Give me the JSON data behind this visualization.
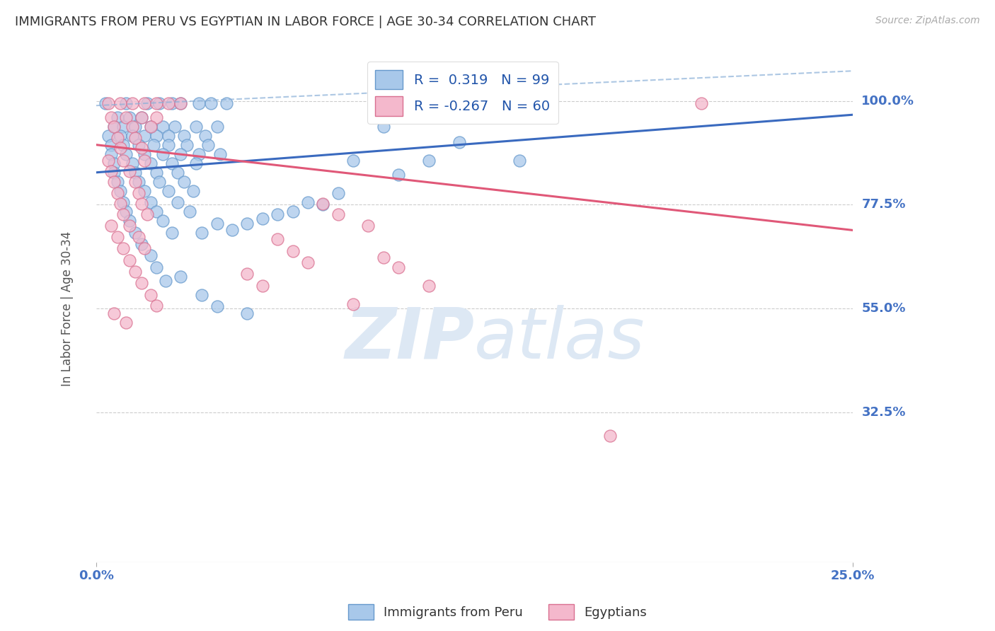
{
  "title": "IMMIGRANTS FROM PERU VS EGYPTIAN IN LABOR FORCE | AGE 30-34 CORRELATION CHART",
  "source_text": "Source: ZipAtlas.com",
  "ylabel": "In Labor Force | Age 30-34",
  "xlim": [
    0.0,
    0.25
  ],
  "ylim": [
    0.0,
    1.1
  ],
  "ytick_labels": [
    "100.0%",
    "77.5%",
    "55.0%",
    "32.5%"
  ],
  "ytick_values": [
    1.0,
    0.775,
    0.55,
    0.325
  ],
  "peru_color": "#a8c8ea",
  "peru_edge_color": "#6699cc",
  "egypt_color": "#f4b8cc",
  "egypt_edge_color": "#d97090",
  "title_color": "#333333",
  "axis_label_color": "#555555",
  "tick_color": "#4472c4",
  "grid_color": "#cccccc",
  "watermark_color": "#dde8f4",
  "peru_trend": [
    0.0,
    0.25,
    0.845,
    0.97
  ],
  "egypt_trend": [
    0.0,
    0.25,
    0.905,
    0.72
  ],
  "peru_dashed": [
    0.0,
    0.25,
    0.99,
    1.065
  ],
  "peru_scatter": [
    [
      0.003,
      0.995
    ],
    [
      0.01,
      0.995
    ],
    [
      0.017,
      0.995
    ],
    [
      0.021,
      0.995
    ],
    [
      0.025,
      0.995
    ],
    [
      0.028,
      0.995
    ],
    [
      0.034,
      0.995
    ],
    [
      0.038,
      0.995
    ],
    [
      0.043,
      0.995
    ],
    [
      0.007,
      0.965
    ],
    [
      0.011,
      0.965
    ],
    [
      0.015,
      0.965
    ],
    [
      0.006,
      0.945
    ],
    [
      0.009,
      0.945
    ],
    [
      0.013,
      0.945
    ],
    [
      0.018,
      0.945
    ],
    [
      0.022,
      0.945
    ],
    [
      0.026,
      0.945
    ],
    [
      0.033,
      0.945
    ],
    [
      0.04,
      0.945
    ],
    [
      0.004,
      0.925
    ],
    [
      0.008,
      0.925
    ],
    [
      0.012,
      0.925
    ],
    [
      0.016,
      0.925
    ],
    [
      0.02,
      0.925
    ],
    [
      0.024,
      0.925
    ],
    [
      0.029,
      0.925
    ],
    [
      0.036,
      0.925
    ],
    [
      0.005,
      0.905
    ],
    [
      0.009,
      0.905
    ],
    [
      0.014,
      0.905
    ],
    [
      0.019,
      0.905
    ],
    [
      0.024,
      0.905
    ],
    [
      0.03,
      0.905
    ],
    [
      0.037,
      0.905
    ],
    [
      0.005,
      0.885
    ],
    [
      0.01,
      0.885
    ],
    [
      0.016,
      0.885
    ],
    [
      0.022,
      0.885
    ],
    [
      0.028,
      0.885
    ],
    [
      0.034,
      0.885
    ],
    [
      0.041,
      0.885
    ],
    [
      0.006,
      0.865
    ],
    [
      0.012,
      0.865
    ],
    [
      0.018,
      0.865
    ],
    [
      0.025,
      0.865
    ],
    [
      0.033,
      0.865
    ],
    [
      0.006,
      0.845
    ],
    [
      0.013,
      0.845
    ],
    [
      0.02,
      0.845
    ],
    [
      0.027,
      0.845
    ],
    [
      0.007,
      0.825
    ],
    [
      0.014,
      0.825
    ],
    [
      0.021,
      0.825
    ],
    [
      0.029,
      0.825
    ],
    [
      0.008,
      0.805
    ],
    [
      0.016,
      0.805
    ],
    [
      0.024,
      0.805
    ],
    [
      0.032,
      0.805
    ],
    [
      0.009,
      0.78
    ],
    [
      0.018,
      0.78
    ],
    [
      0.027,
      0.78
    ],
    [
      0.01,
      0.76
    ],
    [
      0.02,
      0.76
    ],
    [
      0.031,
      0.76
    ],
    [
      0.011,
      0.74
    ],
    [
      0.022,
      0.74
    ],
    [
      0.013,
      0.715
    ],
    [
      0.025,
      0.715
    ],
    [
      0.015,
      0.69
    ],
    [
      0.018,
      0.665
    ],
    [
      0.02,
      0.64
    ],
    [
      0.023,
      0.61
    ],
    [
      0.095,
      0.945
    ],
    [
      0.12,
      0.91
    ],
    [
      0.085,
      0.87
    ],
    [
      0.07,
      0.78
    ],
    [
      0.065,
      0.76
    ],
    [
      0.055,
      0.745
    ],
    [
      0.05,
      0.735
    ],
    [
      0.11,
      0.87
    ],
    [
      0.1,
      0.84
    ],
    [
      0.08,
      0.8
    ],
    [
      0.075,
      0.775
    ],
    [
      0.06,
      0.755
    ],
    [
      0.14,
      0.87
    ],
    [
      0.04,
      0.735
    ],
    [
      0.045,
      0.72
    ],
    [
      0.035,
      0.715
    ],
    [
      0.028,
      0.62
    ],
    [
      0.035,
      0.58
    ],
    [
      0.04,
      0.555
    ],
    [
      0.05,
      0.54
    ]
  ],
  "egypt_scatter": [
    [
      0.004,
      0.995
    ],
    [
      0.008,
      0.995
    ],
    [
      0.012,
      0.995
    ],
    [
      0.016,
      0.995
    ],
    [
      0.02,
      0.995
    ],
    [
      0.024,
      0.995
    ],
    [
      0.028,
      0.995
    ],
    [
      0.005,
      0.965
    ],
    [
      0.01,
      0.965
    ],
    [
      0.015,
      0.965
    ],
    [
      0.02,
      0.965
    ],
    [
      0.006,
      0.945
    ],
    [
      0.012,
      0.945
    ],
    [
      0.018,
      0.945
    ],
    [
      0.007,
      0.92
    ],
    [
      0.013,
      0.92
    ],
    [
      0.008,
      0.898
    ],
    [
      0.015,
      0.898
    ],
    [
      0.004,
      0.87
    ],
    [
      0.009,
      0.87
    ],
    [
      0.016,
      0.87
    ],
    [
      0.005,
      0.848
    ],
    [
      0.011,
      0.848
    ],
    [
      0.006,
      0.825
    ],
    [
      0.013,
      0.825
    ],
    [
      0.007,
      0.8
    ],
    [
      0.014,
      0.8
    ],
    [
      0.008,
      0.778
    ],
    [
      0.015,
      0.778
    ],
    [
      0.009,
      0.755
    ],
    [
      0.017,
      0.755
    ],
    [
      0.005,
      0.73
    ],
    [
      0.011,
      0.73
    ],
    [
      0.007,
      0.705
    ],
    [
      0.014,
      0.705
    ],
    [
      0.009,
      0.68
    ],
    [
      0.016,
      0.68
    ],
    [
      0.011,
      0.655
    ],
    [
      0.013,
      0.63
    ],
    [
      0.015,
      0.605
    ],
    [
      0.018,
      0.58
    ],
    [
      0.02,
      0.556
    ],
    [
      0.006,
      0.54
    ],
    [
      0.01,
      0.52
    ],
    [
      0.075,
      0.778
    ],
    [
      0.08,
      0.755
    ],
    [
      0.09,
      0.73
    ],
    [
      0.06,
      0.7
    ],
    [
      0.065,
      0.675
    ],
    [
      0.07,
      0.65
    ],
    [
      0.05,
      0.625
    ],
    [
      0.055,
      0.6
    ],
    [
      0.095,
      0.66
    ],
    [
      0.1,
      0.64
    ],
    [
      0.11,
      0.6
    ],
    [
      0.085,
      0.56
    ],
    [
      0.17,
      0.275
    ],
    [
      0.2,
      0.995
    ]
  ]
}
